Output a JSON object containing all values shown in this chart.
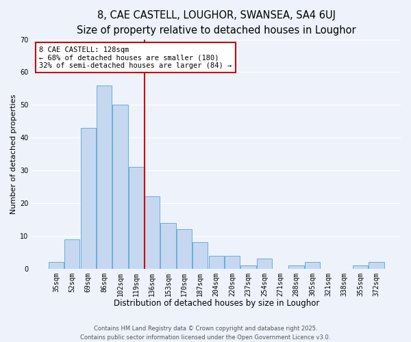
{
  "title": "8, CAE CASTELL, LOUGHOR, SWANSEA, SA4 6UJ",
  "subtitle": "Size of property relative to detached houses in Loughor",
  "xlabel": "Distribution of detached houses by size in Loughor",
  "ylabel": "Number of detached properties",
  "bin_labels": [
    "35sqm",
    "52sqm",
    "69sqm",
    "86sqm",
    "102sqm",
    "119sqm",
    "136sqm",
    "153sqm",
    "170sqm",
    "187sqm",
    "204sqm",
    "220sqm",
    "237sqm",
    "254sqm",
    "271sqm",
    "288sqm",
    "305sqm",
    "321sqm",
    "338sqm",
    "355sqm",
    "372sqm"
  ],
  "bin_values": [
    2,
    9,
    43,
    56,
    50,
    31,
    22,
    14,
    12,
    8,
    4,
    4,
    1,
    3,
    0,
    1,
    2,
    0,
    0,
    1,
    2
  ],
  "bar_color": "#c5d8f0",
  "bar_edge_color": "#6aaed6",
  "bg_color": "#edf2fb",
  "grid_color": "#ffffff",
  "vline_x": 5.5,
  "vline_color": "#cc0000",
  "annotation_title": "8 CAE CASTELL: 128sqm",
  "annotation_line1": "← 68% of detached houses are smaller (180)",
  "annotation_line2": "32% of semi-detached houses are larger (84) →",
  "annotation_box_color": "#cc0000",
  "footer1": "Contains HM Land Registry data © Crown copyright and database right 2025.",
  "footer2": "Contains public sector information licensed under the Open Government Licence v3.0.",
  "ylim": [
    0,
    70
  ],
  "title_fontsize": 10.5,
  "subtitle_fontsize": 9.5,
  "xlabel_fontsize": 8.5,
  "ylabel_fontsize": 8,
  "tick_fontsize": 7,
  "annotation_fontsize": 7.5,
  "footer_fontsize": 6
}
